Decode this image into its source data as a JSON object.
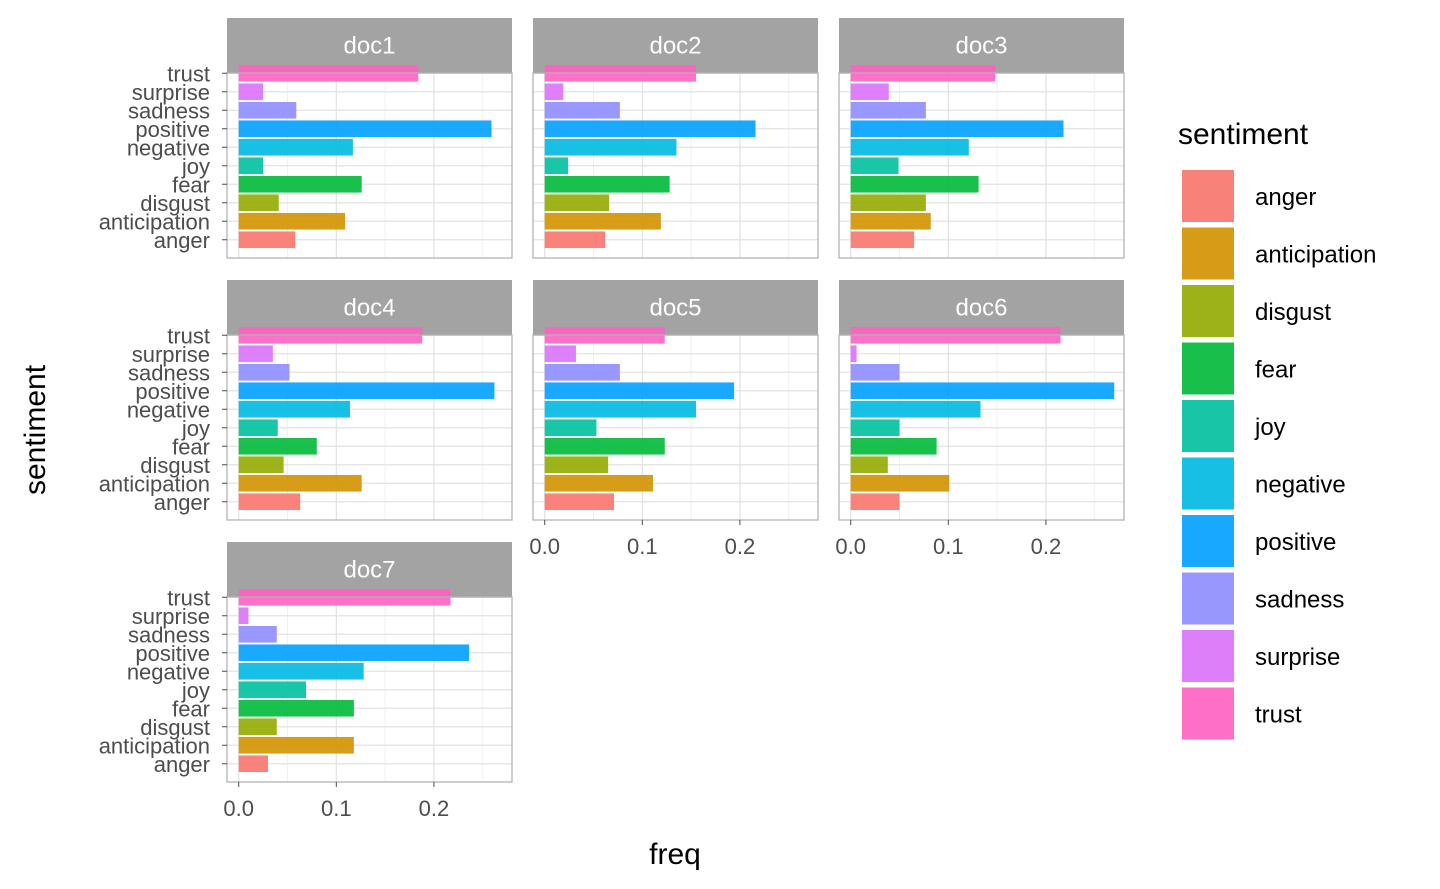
{
  "chart_data": {
    "type": "bar",
    "orientation": "horizontal",
    "xlabel": "freq",
    "ylabel": "sentiment",
    "xlim": [
      -0.012,
      0.28
    ],
    "x_ticks": [
      0.0,
      0.1,
      0.2
    ],
    "x_tick_labels": [
      "0.0",
      "0.1",
      "0.2"
    ],
    "categories": [
      "anger",
      "anticipation",
      "disgust",
      "fear",
      "joy",
      "negative",
      "positive",
      "sadness",
      "surprise",
      "trust"
    ],
    "grid": true,
    "legend": {
      "title": "sentiment",
      "position": "right",
      "entries": [
        {
          "label": "anger",
          "color": "#F8766D"
        },
        {
          "label": "anticipation",
          "color": "#D39200"
        },
        {
          "label": "disgust",
          "color": "#93AA00"
        },
        {
          "label": "fear",
          "color": "#00BA38"
        },
        {
          "label": "joy",
          "color": "#00C19F"
        },
        {
          "label": "negative",
          "color": "#00B9E3"
        },
        {
          "label": "positive",
          "color": "#00A1FF"
        },
        {
          "label": "sadness",
          "color": "#8E8DFF"
        },
        {
          "label": "surprise",
          "color": "#DB72FB"
        },
        {
          "label": "trust",
          "color": "#FF61C3"
        }
      ]
    },
    "facets": [
      {
        "name": "doc1",
        "values": [
          0.058,
          0.109,
          0.041,
          0.126,
          0.025,
          0.117,
          0.259,
          0.059,
          0.025,
          0.184
        ]
      },
      {
        "name": "doc2",
        "values": [
          0.062,
          0.119,
          0.066,
          0.128,
          0.024,
          0.135,
          0.216,
          0.077,
          0.019,
          0.155
        ]
      },
      {
        "name": "doc3",
        "values": [
          0.065,
          0.082,
          0.077,
          0.131,
          0.049,
          0.121,
          0.218,
          0.077,
          0.039,
          0.148
        ]
      },
      {
        "name": "doc4",
        "values": [
          0.063,
          0.126,
          0.046,
          0.08,
          0.04,
          0.114,
          0.262,
          0.052,
          0.035,
          0.188
        ]
      },
      {
        "name": "doc5",
        "values": [
          0.071,
          0.111,
          0.065,
          0.123,
          0.053,
          0.155,
          0.194,
          0.077,
          0.032,
          0.123
        ]
      },
      {
        "name": "doc6",
        "values": [
          0.05,
          0.101,
          0.038,
          0.088,
          0.05,
          0.133,
          0.27,
          0.05,
          0.006,
          0.215
        ]
      },
      {
        "name": "doc7",
        "values": [
          0.03,
          0.118,
          0.039,
          0.118,
          0.069,
          0.128,
          0.236,
          0.039,
          0.01,
          0.217
        ]
      }
    ]
  }
}
